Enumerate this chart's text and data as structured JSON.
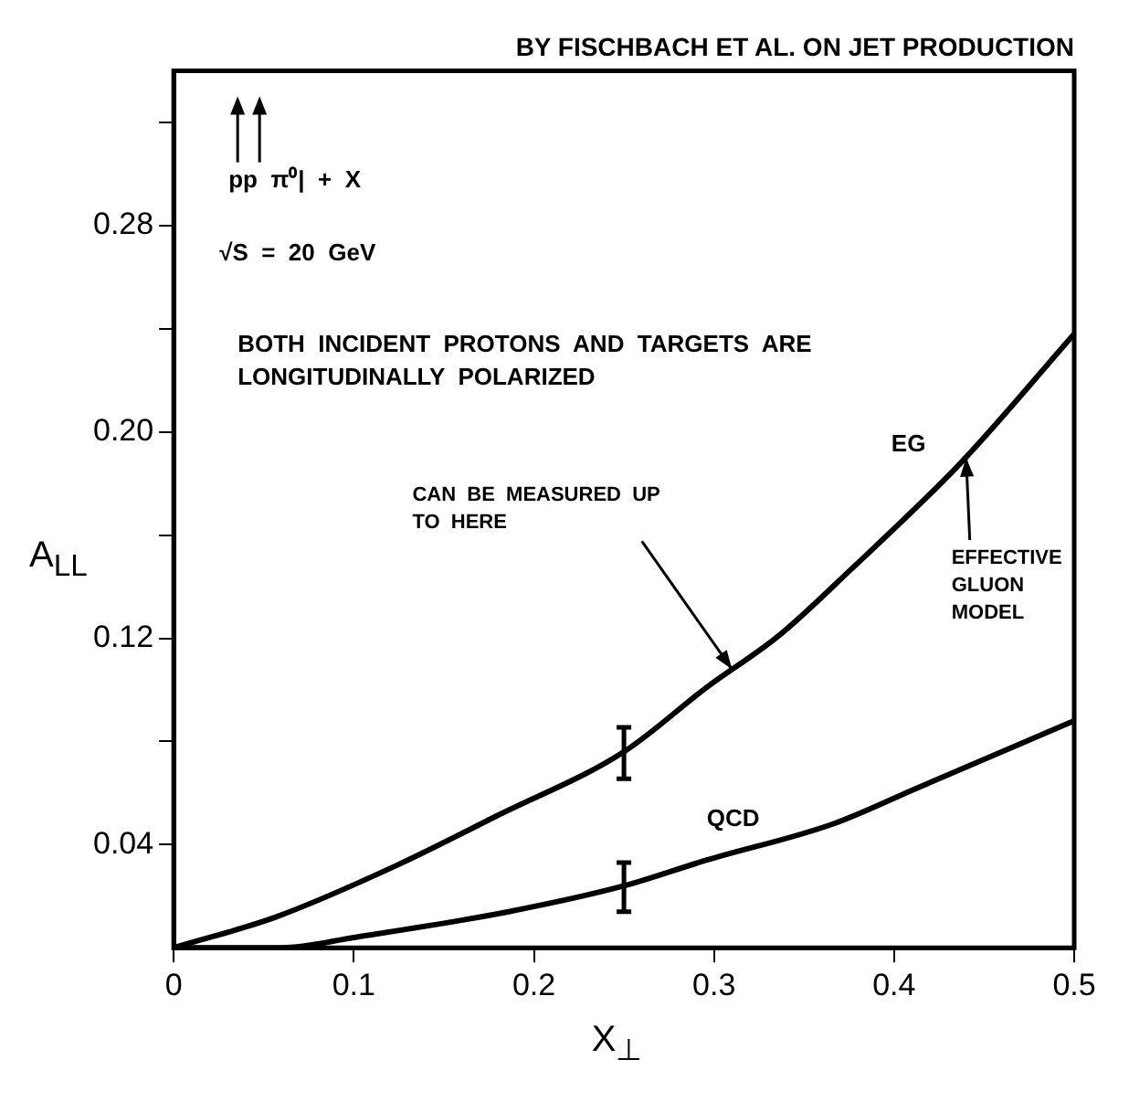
{
  "chart_data": {
    "type": "line",
    "title": "BY FISCHBACH ET AL. ON JET PRODUCTION",
    "xlabel": "X$_{⊥}$",
    "ylabel": "A$_{LL}$",
    "xlim": [
      0,
      0.5
    ],
    "xticks": [
      0,
      0.1,
      0.2,
      0.3,
      0.4,
      0.5
    ],
    "ylim": [
      0,
      0.34
    ],
    "yticks": [
      0.04,
      {
        "value": 0.08,
        "label": null
      },
      0.12,
      {
        "value": 0.16,
        "label": null
      },
      {
        "value": 0.2,
        "label": "0.20"
      },
      {
        "value": 0.24,
        "label": null
      },
      0.28,
      {
        "value": 0.32,
        "label": null
      }
    ],
    "series": [
      {
        "name": "EG",
        "color": "#000000",
        "x": [
          0,
          0.057,
          0.124,
          0.179,
          0.25,
          0.296,
          0.336,
          0.375,
          0.437,
          0.5
        ],
        "values": [
          0,
          0.012,
          0.032,
          0.051,
          0.076,
          0.101,
          0.121,
          0.146,
          0.188,
          0.238
        ],
        "errors": [
          null,
          null,
          null,
          null,
          [
            0.0655,
            0.0855
          ],
          null,
          null,
          null,
          null,
          null
        ]
      },
      {
        "name": "QCD",
        "color": "#000000",
        "x": [
          0,
          0.06,
          0.1,
          0.186,
          0.25,
          0.296,
          0.366,
          0.413,
          0.5
        ],
        "values": [
          0,
          0,
          0.004,
          0.014,
          0.024,
          0.034,
          0.048,
          0.062,
          0.088
        ],
        "errors": [
          null,
          null,
          null,
          null,
          [
            0.014,
            0.033
          ],
          null,
          null,
          null,
          null
        ]
      }
    ],
    "annotations": [
      "pp   π⁰| + X",
      "√S =  20 GeV",
      "BOTH  INCIDENT  PROTONS  AND  TARGETS ARE  LONGITUDINALLY  POLARIZED",
      {
        "text": "CAN BE MEASURED UP TO HERE",
        "x": 0.31,
        "y": 0.108
      },
      {
        "text": "EFFECTIVE GLUON MODEL",
        "x": 0.44,
        "y": 0.19
      }
    ]
  }
}
